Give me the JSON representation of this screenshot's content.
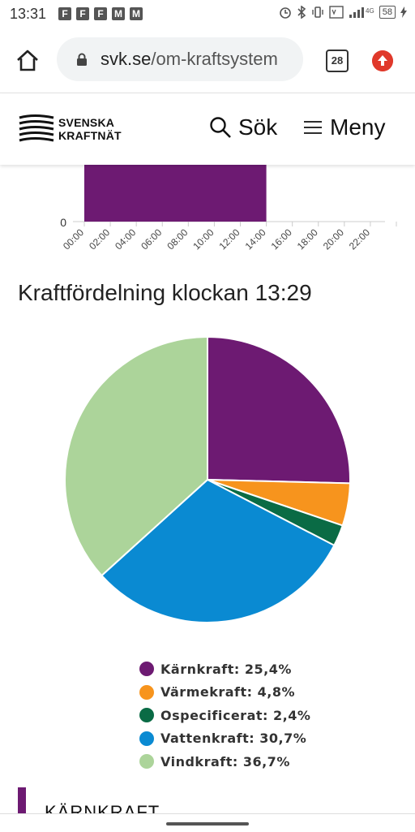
{
  "status_bar": {
    "time": "13:31",
    "notification_icons": [
      "F",
      "F",
      "F",
      "M",
      "M"
    ],
    "battery": "58"
  },
  "browser": {
    "url_domain": "svk.se",
    "url_path": "/om-kraftsystem",
    "tab_count": "28"
  },
  "site": {
    "logo_line1": "SVENSKA",
    "logo_line2": "KRAFTNÄT",
    "search_label": "Sök",
    "menu_label": "Meny"
  },
  "bar_chart": {
    "y_tick": "0",
    "x_ticks": [
      "00:00",
      "02:00",
      "04:00",
      "06:00",
      "08:00",
      "10:00",
      "12:00",
      "14:00",
      "16:00",
      "18:00",
      "20:00",
      "22:00"
    ],
    "bar_start": "00:00",
    "bar_end": "14:00",
    "bar_color": "#6d1a72"
  },
  "chart_data": {
    "type": "pie",
    "title": "Kraftfördelning klockan 13:29",
    "slices": [
      {
        "label": "Kärnkraft",
        "value": 25.4,
        "display": "Kärnkraft: 25,4%",
        "color": "#6d1a72"
      },
      {
        "label": "Värmekraft",
        "value": 4.8,
        "display": "Värmekraft: 4,8%",
        "color": "#f7941d"
      },
      {
        "label": "Ospecificerat",
        "value": 2.4,
        "display": "Ospecificerat: 2,4%",
        "color": "#0a6b45"
      },
      {
        "label": "Vattenkraft",
        "value": 30.7,
        "display": "Vattenkraft: 30,7%",
        "color": "#0a8ad2"
      },
      {
        "label": "Vindkraft",
        "value": 36.7,
        "display": "Vindkraft: 36,7%",
        "color": "#acd49a"
      }
    ]
  },
  "section": {
    "heading": "KÄRNKRAFT",
    "accent_color": "#6d1a72"
  }
}
